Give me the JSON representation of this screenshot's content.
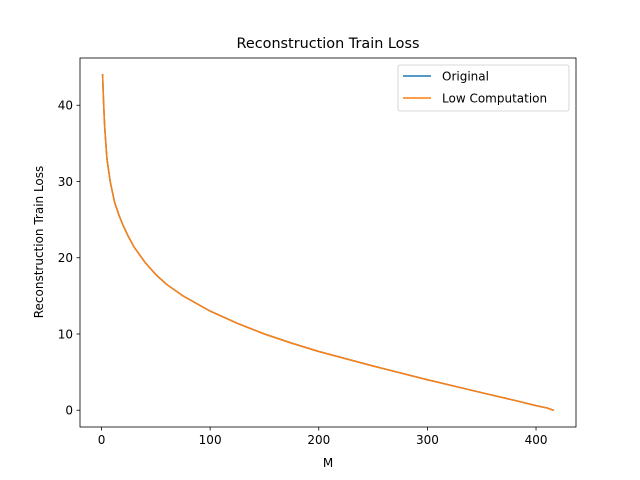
{
  "chart_data": {
    "type": "line",
    "title": "Reconstruction Train Loss",
    "xlabel": "M",
    "ylabel": "Reconstruction Train Loss",
    "xlim": [
      -19.8,
      436.8
    ],
    "ylim": [
      -2.2,
      46.2
    ],
    "xticks": [
      0,
      100,
      200,
      300,
      400
    ],
    "yticks": [
      0,
      10,
      20,
      30,
      40
    ],
    "grid": false,
    "legend_position": "top-right",
    "series": [
      {
        "name": "Original",
        "color": "#1f77b4",
        "x": [
          1,
          2,
          3,
          5,
          8,
          12,
          16,
          20,
          25,
          30,
          40,
          50,
          60,
          75,
          100,
          125,
          150,
          175,
          200,
          250,
          300,
          350,
          380,
          400,
          410,
          416
        ],
        "y": [
          44.0,
          40.0,
          37.0,
          33.0,
          30.0,
          27.3,
          25.6,
          24.2,
          22.7,
          21.4,
          19.4,
          17.8,
          16.5,
          15.0,
          13.0,
          11.4,
          10.0,
          8.8,
          7.7,
          5.8,
          4.0,
          2.3,
          1.3,
          0.6,
          0.3,
          0.0
        ]
      },
      {
        "name": "Low Computation",
        "color": "#ff7f0e",
        "x": [
          1,
          2,
          3,
          5,
          8,
          12,
          16,
          20,
          25,
          30,
          40,
          50,
          60,
          75,
          100,
          125,
          150,
          175,
          200,
          250,
          300,
          350,
          380,
          400,
          410,
          416
        ],
        "y": [
          44.0,
          40.0,
          37.0,
          33.0,
          30.0,
          27.3,
          25.6,
          24.2,
          22.7,
          21.4,
          19.4,
          17.8,
          16.5,
          15.0,
          13.0,
          11.4,
          10.0,
          8.8,
          7.7,
          5.8,
          4.0,
          2.3,
          1.3,
          0.6,
          0.3,
          0.0
        ]
      }
    ]
  }
}
